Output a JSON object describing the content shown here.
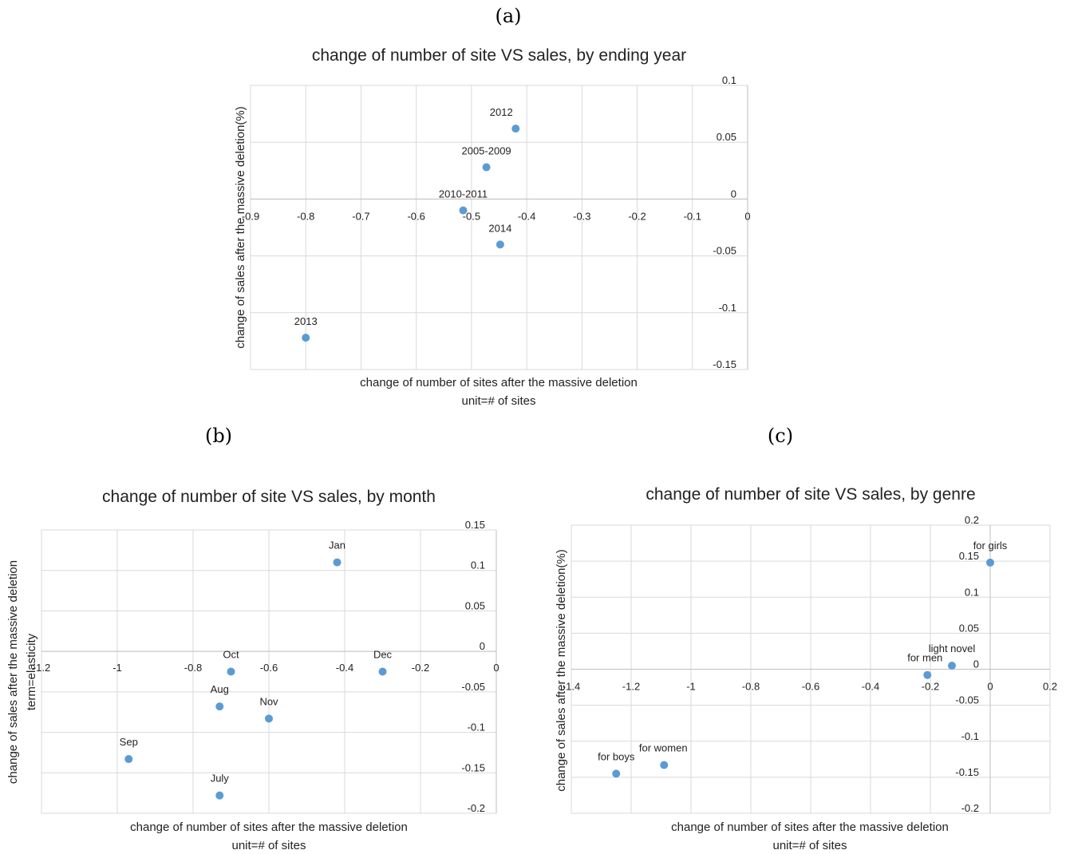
{
  "panel_labels": {
    "a": "(a)",
    "b": "(b)",
    "c": "(c)"
  },
  "colors": {
    "marker": "#5b9bd5",
    "grid": "#d9d9d9",
    "axis": "#bfbfbf"
  },
  "chart_data": [
    {
      "type": "scatter",
      "title": "change of number of site VS sales, by ending year",
      "xlabel": [
        "change of number of sites after the massive deletion",
        "unit=# of sites"
      ],
      "ylabel": [
        "change of sales after the massive deletion(%)"
      ],
      "xlim": [
        -0.9,
        0
      ],
      "ylim": [
        -0.15,
        0.1
      ],
      "xticks": [
        -0.9,
        -0.8,
        -0.7,
        -0.6,
        -0.5,
        -0.4,
        -0.3,
        -0.2,
        -0.1,
        0
      ],
      "xtick_labels": [
        "-0.9",
        "-0.8",
        "-0.7",
        "-0.6",
        "-0.5",
        "-0.4",
        "-0.3",
        "-0.2",
        "-0.1",
        "0"
      ],
      "yticks": [
        0.1,
        0.05,
        0,
        -0.05,
        -0.1,
        -0.15
      ],
      "ytick_labels": [
        "0.1",
        "0.05",
        "0",
        "-0.05",
        "-0.1",
        "-0.15"
      ],
      "grid": true,
      "points": [
        {
          "label": "2012",
          "x": -0.42,
          "y": 0.062
        },
        {
          "label": "2005-2009",
          "x": -0.473,
          "y": 0.028
        },
        {
          "label": "2010-2011",
          "x": -0.515,
          "y": -0.01
        },
        {
          "label": "2014",
          "x": -0.448,
          "y": -0.04
        },
        {
          "label": "2013",
          "x": -0.8,
          "y": -0.122
        }
      ]
    },
    {
      "type": "scatter",
      "title": "change of number of site VS sales, by month",
      "xlabel": [
        "change of number of sites after the massive deletion",
        "unit=# of sites"
      ],
      "ylabel": [
        "change of sales after the massive deletion",
        "term=elasticity"
      ],
      "xlim": [
        -1.2,
        0
      ],
      "ylim": [
        -0.2,
        0.15
      ],
      "xticks": [
        -1.2,
        -1,
        -0.8,
        -0.6,
        -0.4,
        -0.2,
        0
      ],
      "xtick_labels": [
        "-1.2",
        "-1",
        "-0.8",
        "-0.6",
        "-0.4",
        "-0.2",
        "0"
      ],
      "yticks": [
        0.15,
        0.1,
        0.05,
        0,
        -0.05,
        -0.1,
        -0.15,
        -0.2
      ],
      "ytick_labels": [
        "0.15",
        "0.1",
        "0.05",
        "0",
        "-0.05",
        "-0.1",
        "-0.15",
        "-0.2"
      ],
      "grid": true,
      "points": [
        {
          "label": "Jan",
          "x": -0.42,
          "y": 0.11
        },
        {
          "label": "Dec",
          "x": -0.3,
          "y": -0.025
        },
        {
          "label": "Oct",
          "x": -0.7,
          "y": -0.025
        },
        {
          "label": "Aug",
          "x": -0.73,
          "y": -0.068
        },
        {
          "label": "Nov",
          "x": -0.6,
          "y": -0.083
        },
        {
          "label": "Sep",
          "x": -0.97,
          "y": -0.133
        },
        {
          "label": "July",
          "x": -0.73,
          "y": -0.178
        }
      ]
    },
    {
      "type": "scatter",
      "title": "change of number of site VS sales, by genre",
      "xlabel": [
        "change of number of sites after the massive deletion",
        "unit=# of sites"
      ],
      "ylabel": [
        "change of sales after the massive deletion(%)"
      ],
      "xlim": [
        -1.4,
        0.2
      ],
      "ylim": [
        -0.2,
        0.2
      ],
      "xticks": [
        -1.4,
        -1.2,
        -1,
        -0.8,
        -0.6,
        -0.4,
        -0.2,
        0,
        0.2
      ],
      "xtick_labels": [
        "-1.4",
        "-1.2",
        "-1",
        "-0.8",
        "-0.6",
        "-0.4",
        "-0.2",
        "0",
        "0.2"
      ],
      "yticks": [
        0.2,
        0.15,
        0.1,
        0.05,
        0,
        -0.05,
        -0.1,
        -0.15,
        -0.2
      ],
      "ytick_labels": [
        "0.2",
        "0.15",
        "0.1",
        "0.05",
        "0",
        "-0.05",
        "-0.1",
        "-0.15",
        "-0.2"
      ],
      "grid": true,
      "points": [
        {
          "label": "for girls",
          "x": 0,
          "y": 0.148
        },
        {
          "label": "light novel",
          "x": -0.128,
          "y": 0.005
        },
        {
          "label": "for men",
          "x": -0.21,
          "y": -0.008
        },
        {
          "label": "for women",
          "x": -1.09,
          "y": -0.133
        },
        {
          "label": "for boys",
          "x": -1.25,
          "y": -0.145
        }
      ]
    }
  ]
}
